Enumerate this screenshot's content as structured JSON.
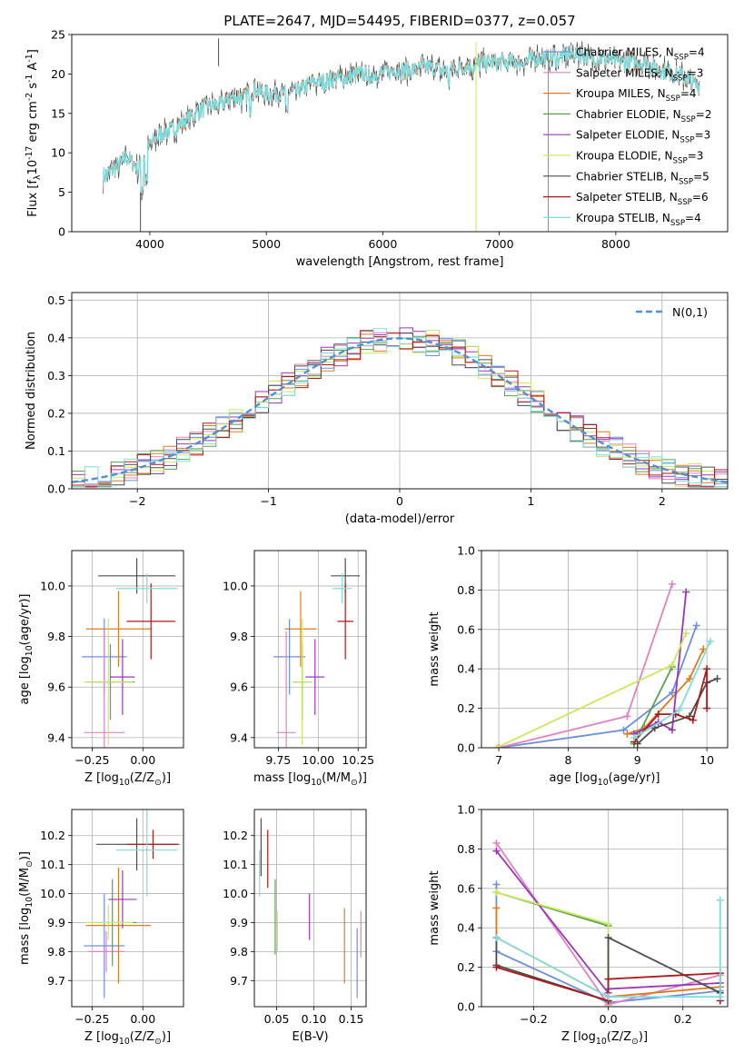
{
  "figure_title": "PLATE=2647, MJD=54495, FIBERID=0377, z=0.057",
  "models": [
    {
      "name": "Chabrier MILES, N$_{SSP}$=4",
      "color": "#6b8fe0"
    },
    {
      "name": "Salpeter MILES, N$_{SSP}$=3",
      "color": "#e082c0"
    },
    {
      "name": "Kroupa MILES, N$_{SSP}$=4",
      "color": "#e07a1f"
    },
    {
      "name": "Chabrier ELODIE, N$_{SSP}$=2",
      "color": "#5aa04a"
    },
    {
      "name": "Salpeter ELODIE, N$_{SSP}$=3",
      "color": "#9b36b8"
    },
    {
      "name": "Kroupa ELODIE, N$_{SSP}$=3",
      "color": "#c9e85c"
    },
    {
      "name": "Chabrier STELIB, N$_{SSP}$=5",
      "color": "#4d4d4d"
    },
    {
      "name": "Salpeter STELIB, N$_{SSP}$=6",
      "color": "#aa1a1a"
    },
    {
      "name": "Kroupa STELIB, N$_{SSP}$=4",
      "color": "#80dcdc"
    }
  ],
  "chart_data": [
    {
      "id": "spectrum",
      "type": "line",
      "xlabel": "wavelength [Angstrom, rest frame]",
      "ylabel": "Flux [f$_\\lambda$10$^{-17}$ erg cm$^{-2}$ s$^{-1}$ A$^{-1}$]",
      "xlim": [
        3330,
        8960
      ],
      "ylim": [
        0,
        25
      ],
      "xticks": [
        4000,
        5000,
        6000,
        7000,
        8000
      ],
      "yticks": [
        0,
        5,
        10,
        15,
        20,
        25
      ],
      "legend": "right",
      "spectrum_x": [
        3600,
        3700,
        3800,
        3900,
        4000,
        4100,
        4200,
        4300,
        4400,
        4500,
        4600,
        4700,
        4800,
        4900,
        5000,
        5100,
        5200,
        5300,
        5400,
        5500,
        5600,
        5700,
        5800,
        5900,
        6000,
        6100,
        6200,
        6300,
        6400,
        6500,
        6600,
        6700,
        6800,
        6900,
        7000,
        7100,
        7200,
        7300,
        7400,
        7500,
        7600,
        7700,
        7800,
        7900,
        8000,
        8100,
        8200,
        8300,
        8400,
        8500,
        8600,
        8700
      ],
      "spectrum_y": [
        7.0,
        8.0,
        9.5,
        8.0,
        11.0,
        12.5,
        13.0,
        14.0,
        15.0,
        16.0,
        16.0,
        17.0,
        17.0,
        18.0,
        17.5,
        17.5,
        17.5,
        18.0,
        19.0,
        19.0,
        19.5,
        19.5,
        20.0,
        20.0,
        20.0,
        20.5,
        20.5,
        20.5,
        21.0,
        20.5,
        20.5,
        21.0,
        21.0,
        21.5,
        21.5,
        21.5,
        21.5,
        22.0,
        22.0,
        22.0,
        22.5,
        22.5,
        22.0,
        22.0,
        21.5,
        21.5,
        21.5,
        21.0,
        20.5,
        20.0,
        19.5,
        18.5
      ]
    },
    {
      "id": "residuals",
      "type": "area",
      "xlabel": "(data-model)/error",
      "ylabel": "Normed distribution",
      "xlim": [
        -2.5,
        2.5
      ],
      "ylim": [
        0,
        0.52
      ],
      "xticks": [
        -2,
        -1,
        0,
        1,
        2
      ],
      "yticks": [
        0.0,
        0.1,
        0.2,
        0.3,
        0.4,
        0.5
      ],
      "grid": true,
      "legend_entry": "$\\mathcal{N}(0,1)$",
      "legend": "top-right",
      "bin_width": 0.1,
      "gaussian": {
        "mean": 0,
        "sigma": 1
      }
    },
    {
      "id": "age-vs-Z",
      "type": "scatter",
      "xlabel": "Z [log$_{10}$(Z/Z$_\\odot$)]",
      "ylabel": "age  [log$_{10}$(age/yr)]",
      "xlim": [
        -0.35,
        0.2
      ],
      "ylim": [
        9.36,
        10.14
      ],
      "xticks": [
        -0.25,
        0.0
      ],
      "xtick_labels": [
        "−0.25",
        "0.00"
      ],
      "yticks": [
        9.4,
        9.6,
        9.8,
        10.0
      ],
      "grid": true,
      "points": [
        {
          "m": 0,
          "x": -0.19,
          "y": 9.72,
          "xerr": 0.11,
          "yerr": 0.15
        },
        {
          "m": 1,
          "x": -0.19,
          "y": 9.42,
          "xerr": 0.1,
          "yerr": 0.4
        },
        {
          "m": 2,
          "x": -0.12,
          "y": 9.83,
          "xerr": 0.16,
          "yerr": 0.15
        },
        {
          "m": 3,
          "x": -0.16,
          "y": 9.62,
          "xerr": 0.12,
          "yerr": 0.15
        },
        {
          "m": 4,
          "x": -0.1,
          "y": 9.64,
          "xerr": 0.06,
          "yerr": 0.15
        },
        {
          "m": 5,
          "x": -0.17,
          "y": 9.62,
          "xerr": 0.12,
          "yerr": 0.25
        },
        {
          "m": 6,
          "x": -0.03,
          "y": 10.04,
          "xerr": 0.19,
          "yerr": 0.07
        },
        {
          "m": 7,
          "x": 0.04,
          "y": 9.86,
          "xerr": 0.12,
          "yerr": 0.15
        },
        {
          "m": 8,
          "x": 0.02,
          "y": 9.99,
          "xerr": 0.15,
          "yerr": 0.06
        }
      ]
    },
    {
      "id": "age-vs-mass",
      "type": "scatter",
      "xlabel": "mass [log$_{10}$(M/M$_\\odot$)]",
      "xlim": [
        9.6,
        10.3
      ],
      "ylim": [
        9.36,
        10.14
      ],
      "xticks": [
        9.75,
        10.0,
        10.25
      ],
      "xtick_labels": [
        "9.75",
        "10.00",
        "10.25"
      ],
      "yticks": [
        9.4,
        9.6,
        9.8,
        10.0
      ],
      "grid": true,
      "points": [
        {
          "m": 0,
          "x": 9.82,
          "y": 9.72,
          "xerr": 0.1,
          "yerr": 0.15
        },
        {
          "m": 1,
          "x": 9.8,
          "y": 9.42,
          "xerr": 0.06,
          "yerr": 0.4
        },
        {
          "m": 2,
          "x": 9.89,
          "y": 9.83,
          "xerr": 0.1,
          "yerr": 0.15
        },
        {
          "m": 3,
          "x": 9.9,
          "y": 9.62,
          "xerr": 0.06,
          "yerr": 0.15
        },
        {
          "m": 4,
          "x": 9.98,
          "y": 9.64,
          "xerr": 0.06,
          "yerr": 0.15
        },
        {
          "m": 5,
          "x": 9.9,
          "y": 9.62,
          "xerr": 0.06,
          "yerr": 0.25
        },
        {
          "m": 6,
          "x": 10.17,
          "y": 10.04,
          "xerr": 0.09,
          "yerr": 0.07
        },
        {
          "m": 7,
          "x": 10.17,
          "y": 9.86,
          "xerr": 0.05,
          "yerr": 0.15
        },
        {
          "m": 8,
          "x": 10.15,
          "y": 9.99,
          "xerr": 0.06,
          "yerr": 0.06
        }
      ]
    },
    {
      "id": "weight-vs-age",
      "type": "line",
      "xlabel": "age  [log$_{10}$(age/yr)]",
      "ylabel": "mass weight",
      "xlim": [
        6.75,
        10.3
      ],
      "ylim": [
        0,
        1.0
      ],
      "xticks": [
        7,
        8,
        9,
        10
      ],
      "yticks": [
        0.0,
        0.2,
        0.4,
        0.6,
        0.8,
        1.0
      ],
      "grid": true,
      "series": [
        {
          "m": 0,
          "x": [
            7.0,
            8.8,
            9.5,
            9.85
          ],
          "y": [
            0.0,
            0.09,
            0.28,
            0.62
          ]
        },
        {
          "m": 1,
          "x": [
            7.0,
            8.85,
            9.5
          ],
          "y": [
            0.0,
            0.16,
            0.83
          ]
        },
        {
          "m": 2,
          "x": [
            8.85,
            9.1,
            9.75,
            9.95
          ],
          "y": [
            0.07,
            0.1,
            0.35,
            0.5
          ]
        },
        {
          "m": 3,
          "x": [
            8.95,
            9.5
          ],
          "y": [
            0.02,
            0.41
          ]
        },
        {
          "m": 4,
          "x": [
            8.95,
            9.3,
            9.5,
            9.7
          ],
          "y": [
            0.07,
            0.13,
            0.09,
            0.79
          ]
        },
        {
          "m": 5,
          "x": [
            6.97,
            9.5,
            9.7
          ],
          "y": [
            0.0,
            0.42,
            0.58
          ]
        },
        {
          "m": 6,
          "x": [
            9.0,
            9.25,
            9.75,
            10.0,
            10.15
          ],
          "y": [
            0.02,
            0.1,
            0.16,
            0.33,
            0.35
          ]
        },
        {
          "m": 7,
          "x": [
            8.95,
            9.3,
            9.55,
            9.8,
            10.0,
            10.0
          ],
          "y": [
            0.03,
            0.17,
            0.17,
            0.14,
            0.4,
            0.2
          ]
        },
        {
          "m": 8,
          "x": [
            8.95,
            9.6,
            10.05
          ],
          "y": [
            0.05,
            0.19,
            0.54
          ]
        }
      ]
    },
    {
      "id": "mass-vs-Z",
      "type": "scatter",
      "xlabel": "Z [log$_{10}$(Z/Z$_\\odot$)]",
      "ylabel": "mass [log$_{10}$(M/M$_\\odot$)]",
      "xlim": [
        -0.35,
        0.2
      ],
      "ylim": [
        9.61,
        10.29
      ],
      "xticks": [
        -0.25,
        0.0
      ],
      "xtick_labels": [
        "−0.25",
        "0.00"
      ],
      "yticks": [
        9.7,
        9.8,
        9.9,
        10.0,
        10.1,
        10.2
      ],
      "grid": true,
      "points": [
        {
          "m": 0,
          "x": -0.19,
          "y": 9.82,
          "xerr": 0.1,
          "yerr": 0.18
        },
        {
          "m": 1,
          "x": -0.18,
          "y": 9.8,
          "xerr": 0.09,
          "yerr": 0.07
        },
        {
          "m": 2,
          "x": -0.12,
          "y": 9.89,
          "xerr": 0.16,
          "yerr": 0.2
        },
        {
          "m": 3,
          "x": -0.15,
          "y": 9.9,
          "xerr": 0.12,
          "yerr": 0.15
        },
        {
          "m": 4,
          "x": -0.1,
          "y": 9.98,
          "xerr": 0.07,
          "yerr": 0.1
        },
        {
          "m": 5,
          "x": -0.17,
          "y": 9.9,
          "xerr": 0.12,
          "yerr": 0.06
        },
        {
          "m": 6,
          "x": -0.03,
          "y": 10.17,
          "xerr": 0.2,
          "yerr": 0.09
        },
        {
          "m": 7,
          "x": 0.05,
          "y": 10.17,
          "xerr": 0.13,
          "yerr": 0.05
        },
        {
          "m": 8,
          "x": 0.02,
          "y": 10.15,
          "xerr": 0.15,
          "yerr": 0.16
        }
      ]
    },
    {
      "id": "mass-vs-EBV",
      "type": "scatter",
      "xlabel": "E(B-V)",
      "xlim": [
        0.02,
        0.17
      ],
      "ylim": [
        9.61,
        10.29
      ],
      "xticks": [
        0.05,
        0.1,
        0.15
      ],
      "xtick_labels": [
        "0.05",
        "0.10",
        "0.15"
      ],
      "yticks": [
        9.7,
        9.8,
        9.9,
        10.0,
        10.1,
        10.2
      ],
      "grid": true,
      "points": [
        {
          "m": 0,
          "x": 0.158,
          "y": 9.76,
          "yerr": 0.12
        },
        {
          "m": 1,
          "x": 0.163,
          "y": 9.86,
          "yerr": 0.08
        },
        {
          "m": 2,
          "x": 0.141,
          "y": 9.82,
          "yerr": 0.13
        },
        {
          "m": 3,
          "x": 0.048,
          "y": 9.92,
          "yerr": 0.13
        },
        {
          "m": 4,
          "x": 0.094,
          "y": 9.92,
          "yerr": 0.08
        },
        {
          "m": 5,
          "x": 0.051,
          "y": 9.87,
          "yerr": 0.07
        },
        {
          "m": 6,
          "x": 0.029,
          "y": 10.16,
          "yerr": 0.1
        },
        {
          "m": 7,
          "x": 0.038,
          "y": 10.12,
          "yerr": 0.1
        },
        {
          "m": 8,
          "x": 0.027,
          "y": 10.07,
          "yerr": 0.08
        }
      ]
    },
    {
      "id": "weight-vs-Z",
      "type": "line",
      "xlabel": "Z [log$_{10}$(Z/Z$_\\odot$)]",
      "ylabel": "mass weight",
      "xlim": [
        -0.34,
        0.32
      ],
      "ylim": [
        0,
        1.0
      ],
      "xticks": [
        -0.2,
        0.0,
        0.2
      ],
      "xtick_labels": [
        "−0.2",
        "0.0",
        "0.2"
      ],
      "yticks": [
        0.0,
        0.2,
        0.4,
        0.6,
        0.8,
        1.0
      ],
      "grid": true,
      "series": [
        {
          "m": 0,
          "x": [
            -0.3,
            -0.3,
            0.0,
            0.3
          ],
          "y": [
            0.62,
            0.28,
            0.02,
            0.08
          ]
        },
        {
          "m": 1,
          "x": [
            -0.3,
            0.0,
            0.3
          ],
          "y": [
            0.83,
            0.01,
            0.16
          ]
        },
        {
          "m": 2,
          "x": [
            -0.3,
            -0.3,
            0.0,
            0.3
          ],
          "y": [
            0.5,
            0.35,
            0.05,
            0.1
          ]
        },
        {
          "m": 3,
          "x": [
            -0.3,
            0.0
          ],
          "y": [
            0.58,
            0.41
          ]
        },
        {
          "m": 4,
          "x": [
            -0.3,
            0.0,
            0.0,
            0.3
          ],
          "y": [
            0.79,
            0.07,
            0.09,
            0.12
          ]
        },
        {
          "m": 5,
          "x": [
            -0.3,
            0.0,
            0.0
          ],
          "y": [
            0.58,
            0.42,
            0.0
          ]
        },
        {
          "m": 6,
          "x": [
            -0.3,
            -0.3,
            0.0,
            0.0,
            0.3
          ],
          "y": [
            0.35,
            0.21,
            0.03,
            0.35,
            0.07
          ]
        },
        {
          "m": 7,
          "x": [
            -0.3,
            0.0,
            0.0,
            0.3,
            0.3
          ],
          "y": [
            0.2,
            0.03,
            0.14,
            0.17,
            0.03
          ]
        },
        {
          "m": 8,
          "x": [
            -0.3,
            0.0,
            0.3,
            0.3
          ],
          "y": [
            0.35,
            0.05,
            0.05,
            0.54
          ]
        }
      ]
    }
  ]
}
